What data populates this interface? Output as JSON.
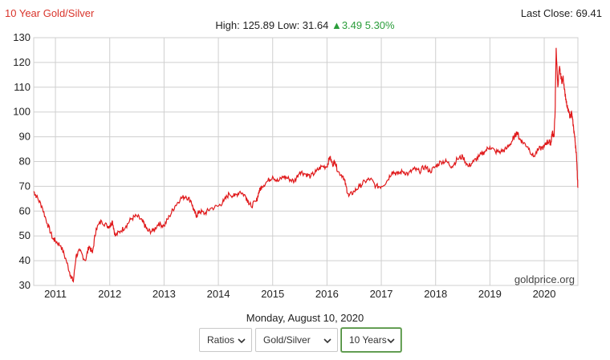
{
  "header": {
    "title": "10 Year Gold/Silver",
    "last_close": "Last Close: 69.41",
    "high_low": "High: 125.89 Low: 31.64",
    "change": "▲3.49 5.30%"
  },
  "date_label": "Monday, August 10, 2020",
  "controls": {
    "ratio_select": "Ratios",
    "pair_select": "Gold/Silver",
    "range_select": "10 Years"
  },
  "colors": {
    "line": "#e0191b",
    "grid": "#cfcfcf",
    "title": "#d9342b",
    "change": "#2a9d3a"
  },
  "chart_data": {
    "type": "line",
    "title": "10 Year Gold/Silver",
    "xlabel": "",
    "ylabel": "",
    "xlim": [
      2010.6,
      2020.62
    ],
    "ylim": [
      30,
      130
    ],
    "yticks": [
      30,
      40,
      50,
      60,
      70,
      80,
      90,
      100,
      110,
      120,
      130
    ],
    "xticks": [
      2011,
      2012,
      2013,
      2014,
      2015,
      2016,
      2017,
      2018,
      2019,
      2020
    ],
    "grid": true,
    "legend": "none",
    "watermark": "goldprice.org",
    "series": [
      {
        "x": [
          2010.6,
          2010.65,
          2010.75,
          2010.85,
          2010.95,
          2011.0,
          2011.1,
          2011.2,
          2011.28,
          2011.33,
          2011.38,
          2011.45,
          2011.55,
          2011.62,
          2011.68,
          2011.75,
          2011.85,
          2011.95,
          2012.0,
          2012.05,
          2012.1,
          2012.2,
          2012.3,
          2012.4,
          2012.5,
          2012.6,
          2012.65,
          2012.7,
          2012.8,
          2012.9,
          2013.0,
          2013.1,
          2013.2,
          2013.3,
          2013.4,
          2013.5,
          2013.55,
          2013.6,
          2013.65,
          2013.75,
          2013.85,
          2014.0,
          2014.1,
          2014.2,
          2014.3,
          2014.4,
          2014.5,
          2014.55,
          2014.6,
          2014.7,
          2014.75,
          2014.8,
          2014.9,
          2015.0,
          2015.1,
          2015.2,
          2015.3,
          2015.4,
          2015.5,
          2015.6,
          2015.7,
          2015.8,
          2015.9,
          2016.0,
          2016.05,
          2016.1,
          2016.15,
          2016.2,
          2016.3,
          2016.35,
          2016.4,
          2016.5,
          2016.6,
          2016.7,
          2016.8,
          2016.9,
          2017.0,
          2017.1,
          2017.2,
          2017.3,
          2017.4,
          2017.5,
          2017.6,
          2017.7,
          2017.8,
          2017.9,
          2018.0,
          2018.1,
          2018.2,
          2018.3,
          2018.4,
          2018.5,
          2018.6,
          2018.7,
          2018.8,
          2018.9,
          2019.0,
          2019.1,
          2019.2,
          2019.3,
          2019.4,
          2019.45,
          2019.5,
          2019.55,
          2019.6,
          2019.7,
          2019.8,
          2019.9,
          2020.0,
          2020.05,
          2020.1,
          2020.12,
          2020.15,
          2020.18,
          2020.2,
          2020.22,
          2020.25,
          2020.28,
          2020.3,
          2020.33,
          2020.35,
          2020.38,
          2020.42,
          2020.45,
          2020.48,
          2020.5,
          2020.52,
          2020.55,
          2020.58,
          2020.6,
          2020.62
        ],
        "values": [
          68,
          66,
          62,
          55,
          49,
          48,
          46,
          40,
          34,
          31.6,
          42,
          44,
          40,
          46,
          43,
          53,
          56,
          54,
          54,
          56,
          50,
          52,
          54,
          57,
          58,
          56,
          54,
          52,
          52,
          55,
          54,
          58,
          62,
          65,
          66,
          64,
          60,
          58,
          60,
          59,
          61,
          62,
          64,
          67,
          66,
          68,
          66,
          64,
          62,
          64,
          68,
          70,
          72,
          74,
          72,
          74,
          73,
          72,
          76,
          75,
          74,
          76,
          78,
          78,
          82,
          79,
          80,
          76,
          74,
          70,
          66,
          68,
          70,
          72,
          73,
          70,
          70,
          72,
          76,
          75,
          76,
          75,
          77,
          76,
          78,
          76,
          78,
          80,
          80,
          78,
          81,
          82,
          78,
          80,
          82,
          84,
          86,
          84,
          84,
          85,
          88,
          90,
          92,
          89,
          88,
          86,
          82,
          85,
          86,
          88,
          88,
          87,
          92,
          90,
          100,
          125.9,
          110,
          118,
          115,
          112,
          114,
          108,
          102,
          100,
          98,
          100,
          97,
          92,
          86,
          80,
          69.41
        ]
      }
    ]
  }
}
